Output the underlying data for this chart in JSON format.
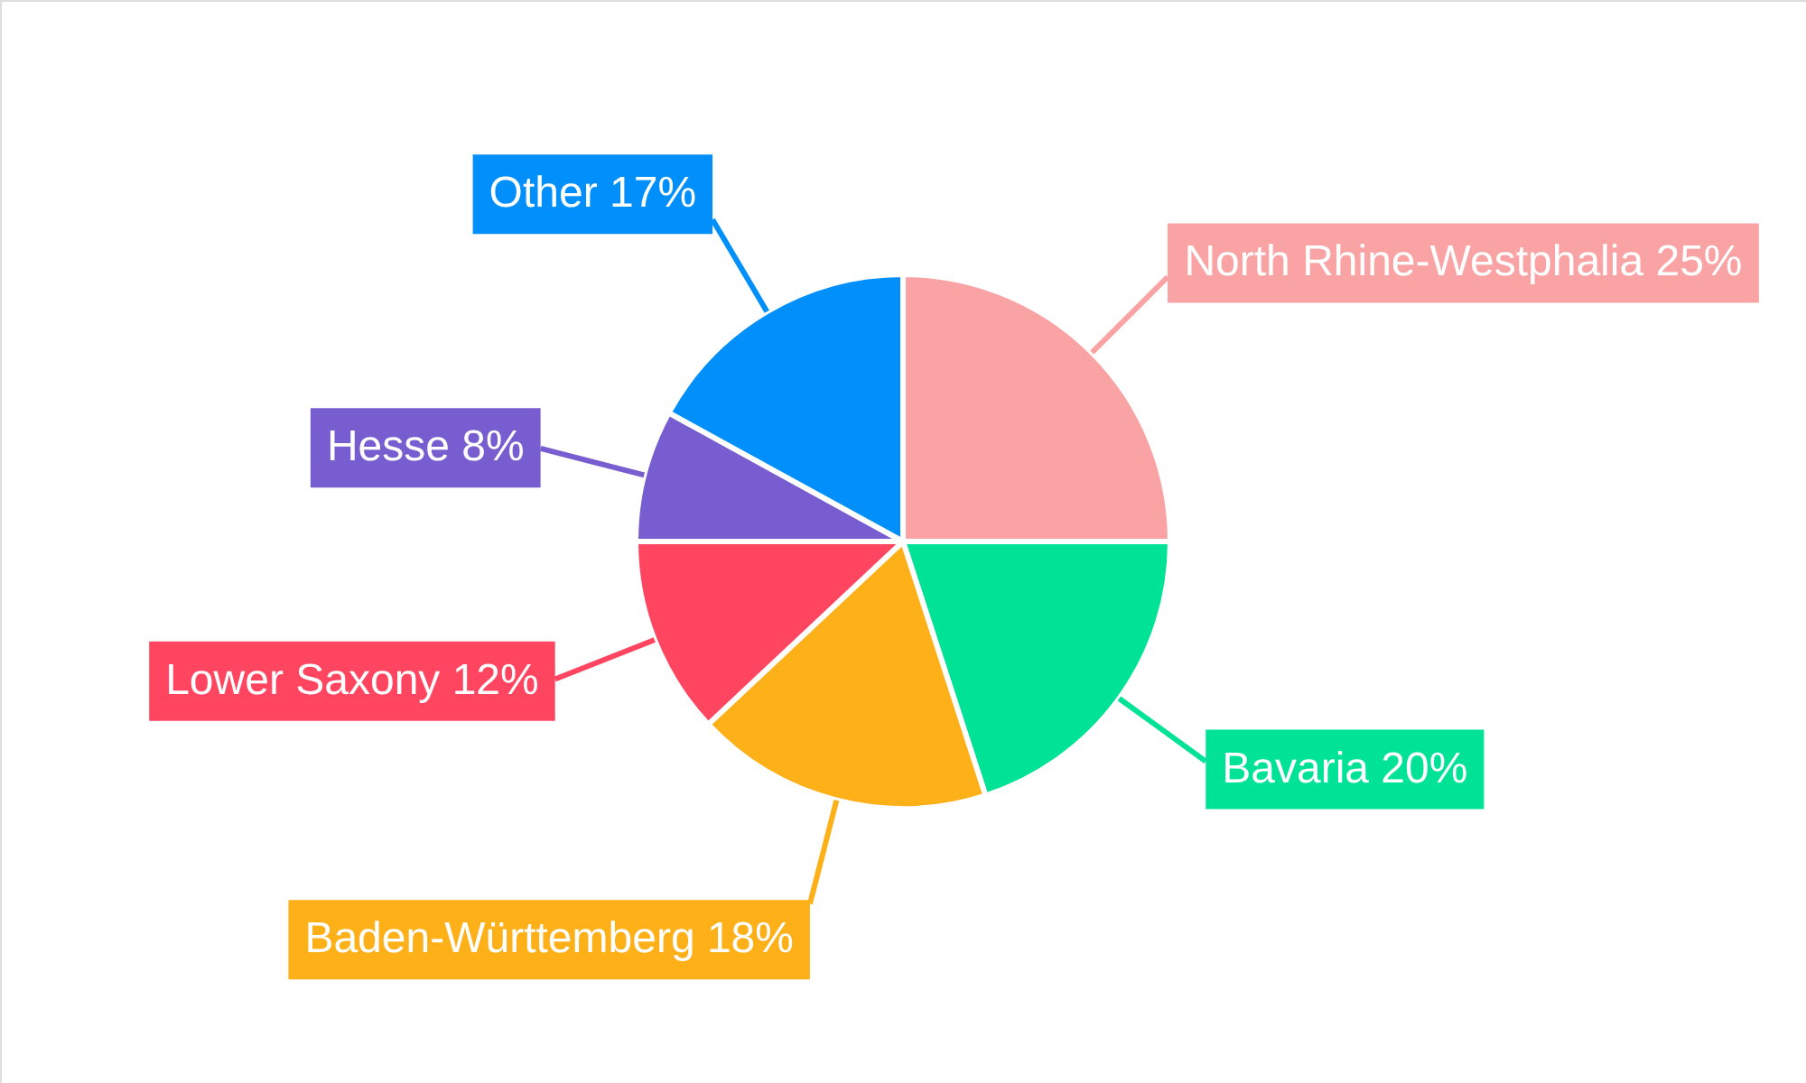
{
  "chart_data": {
    "type": "pie",
    "categories": [
      "North Rhine-Westphalia",
      "Bavaria",
      "Baden-Württemberg",
      "Lower Saxony",
      "Hesse",
      "Other"
    ],
    "values": [
      25,
      20,
      18,
      12,
      8,
      17
    ],
    "value_labels": [
      "25%",
      "20%",
      "18%",
      "12%",
      "8%",
      "17%"
    ],
    "colors": [
      "#f9a3a4",
      "#00e396",
      "#feb019",
      "#ff4560",
      "#775dd0",
      "#008ffb"
    ]
  }
}
